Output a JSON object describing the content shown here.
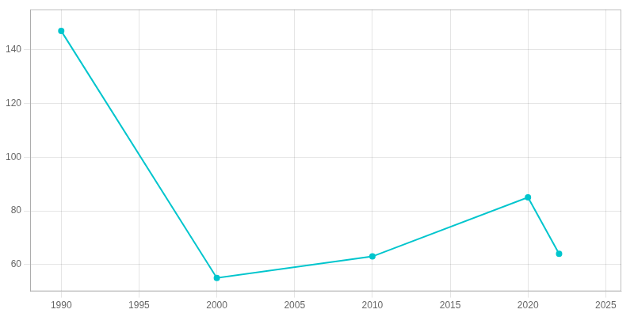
{
  "chart_data": {
    "type": "line",
    "x": [
      1990,
      2000,
      2010,
      2020,
      2022
    ],
    "values": [
      147,
      55,
      63,
      85,
      64
    ],
    "color": "#00C5CD",
    "marker": "circle",
    "xlim": [
      1988,
      2026
    ],
    "xticks": [
      1990,
      1995,
      2000,
      2005,
      2010,
      2015,
      2020,
      2025
    ],
    "ylim": [
      50,
      155
    ],
    "yticks": [
      60,
      80,
      100,
      120,
      140
    ],
    "grid": true
  }
}
